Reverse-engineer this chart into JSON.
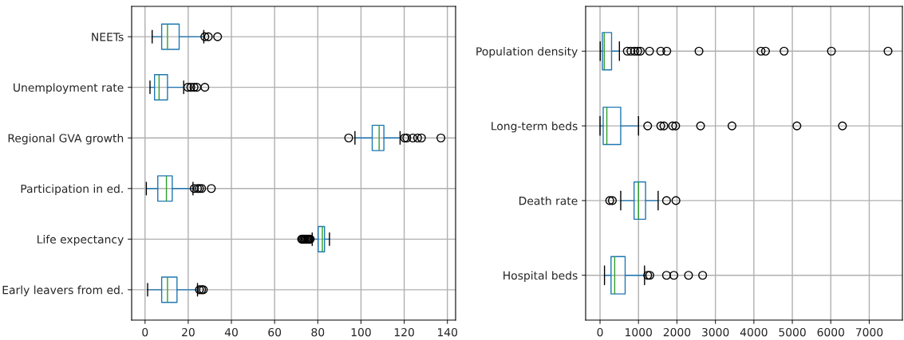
{
  "chart_data": [
    {
      "type": "box",
      "orientation": "horizontal",
      "grid": true,
      "xlim": [
        -6.2,
        143.8
      ],
      "xticks": [
        0,
        20,
        40,
        60,
        80,
        100,
        120,
        140
      ],
      "categories": [
        "NEETs",
        "Unemployment rate",
        "Regional GVA growth",
        "Participation in ed.",
        "Life expectancy",
        "Early leavers from ed."
      ],
      "boxes": [
        {
          "low": 3.3,
          "q1": 7.7,
          "median": 10.4,
          "q3": 15.8,
          "high": 27.2,
          "outliers": [
            27.7,
            29.3,
            33.6
          ]
        },
        {
          "low": 2.3,
          "q1": 4.4,
          "median": 6.5,
          "q3": 10.4,
          "high": 17.9,
          "outliers": [
            19.8,
            21.2,
            22.7,
            24,
            27.7
          ]
        },
        {
          "low": 97.2,
          "q1": 105.2,
          "median": 108.4,
          "q3": 110.6,
          "high": 118.1,
          "outliers": [
            94.3,
            120.2,
            121.2,
            124,
            126.2,
            128,
            137
          ]
        },
        {
          "low": 0.6,
          "q1": 5.9,
          "median": 9.9,
          "q3": 12.6,
          "high": 22.2,
          "outliers": [
            22.8,
            24.3,
            25.2,
            26.2,
            30.7
          ]
        },
        {
          "low": 77.4,
          "q1": 80.2,
          "median": 82.1,
          "q3": 83.1,
          "high": 85.4,
          "outliers": [
            72.5,
            73,
            73.5,
            74,
            74.5,
            75,
            75.5,
            76,
            76.5
          ]
        },
        {
          "low": 1.2,
          "q1": 7.7,
          "median": 10.4,
          "q3": 14.8,
          "high": 24.3,
          "outliers": [
            25.2,
            26.2,
            27
          ]
        }
      ]
    },
    {
      "type": "box",
      "orientation": "horizontal",
      "grid": true,
      "xlim": [
        -374,
        7862
      ],
      "xticks": [
        0,
        1000,
        2000,
        3000,
        4000,
        5000,
        6000,
        7000
      ],
      "categories": [
        "Population density",
        "Long-term beds",
        "Death rate",
        "Hospital beds"
      ],
      "boxes": [
        {
          "low": 5,
          "q1": 61,
          "median": 109,
          "q3": 300,
          "high": 504,
          "outliers": [
            708,
            803,
            899,
            980,
            1048,
            1287,
            1579,
            1736,
            2573,
            4186,
            4302,
            4785,
            6017,
            7488
          ]
        },
        {
          "low": 0,
          "q1": 82,
          "median": 177,
          "q3": 538,
          "high": 1001,
          "outliers": [
            1239,
            1579,
            1661,
            1886,
            1967,
            2614,
            3431,
            5119,
            6303
          ]
        },
        {
          "low": 538,
          "q1": 885,
          "median": 1001,
          "q3": 1184,
          "high": 1511,
          "outliers": [
            252,
            320,
            1729,
            1974
          ]
        },
        {
          "low": 116,
          "q1": 286,
          "median": 381,
          "q3": 653,
          "high": 1157,
          "outliers": [
            1239,
            1293,
            1729,
            1920,
            2301,
            2668
          ]
        }
      ]
    }
  ]
}
